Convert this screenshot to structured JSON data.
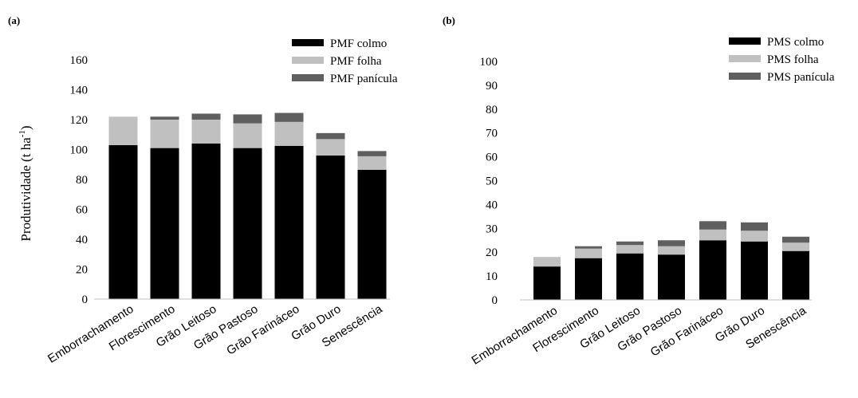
{
  "colors": {
    "colmo": "#000000",
    "folha": "#c0c0c0",
    "panicula": "#5f5f5f"
  },
  "chart_data": [
    {
      "type": "bar",
      "stacked": true,
      "panel_label": "(a)",
      "ylabel": "Produtividade (t ha",
      "ylabel_sup": "-1",
      "ylabel_close": ")",
      "ylim": [
        0,
        160
      ],
      "yticks": [
        "0",
        "20",
        "40",
        "60",
        "80",
        "100",
        "120",
        "140",
        "160"
      ],
      "legend_position": "top-right",
      "categories": [
        "Emborrachamento",
        "Florescimento",
        "Grão Leitoso",
        "Grão Pastoso",
        "Grão Farináceo",
        "Grão Duro",
        "Senescência"
      ],
      "series": [
        {
          "name": "PMF colmo",
          "color_key": "colmo",
          "values": [
            103,
            101,
            104,
            101,
            102.5,
            96,
            86.5
          ]
        },
        {
          "name": "PMF folha",
          "color_key": "folha",
          "values": [
            19,
            19,
            16,
            16.5,
            16,
            11,
            9
          ]
        },
        {
          "name": "PMF panícula",
          "color_key": "panicula",
          "values": [
            0,
            2,
            4,
            6,
            6,
            4,
            3.5
          ]
        }
      ]
    },
    {
      "type": "bar",
      "stacked": true,
      "panel_label": "(b)",
      "ylim": [
        0,
        100
      ],
      "yticks": [
        "0",
        "10",
        "20",
        "30",
        "40",
        "50",
        "60",
        "70",
        "80",
        "90",
        "100"
      ],
      "legend_position": "top-right",
      "categories": [
        "Emborrachamento",
        "Florescimento",
        "Grão Leitoso",
        "Grão Pastoso",
        "Grão Farináceo",
        "Grão Duro",
        "Senescência"
      ],
      "series": [
        {
          "name": "PMS colmo",
          "color_key": "colmo",
          "values": [
            14,
            17.5,
            19.5,
            19,
            25,
            24.5,
            20.5
          ]
        },
        {
          "name": "PMS folha",
          "color_key": "folha",
          "values": [
            4,
            4,
            3.5,
            3.5,
            4.5,
            4.5,
            3.5
          ]
        },
        {
          "name": "PMS panícula",
          "color_key": "panicula",
          "values": [
            0,
            1,
            1.5,
            2.5,
            3.5,
            3.5,
            2.5
          ]
        }
      ]
    }
  ]
}
